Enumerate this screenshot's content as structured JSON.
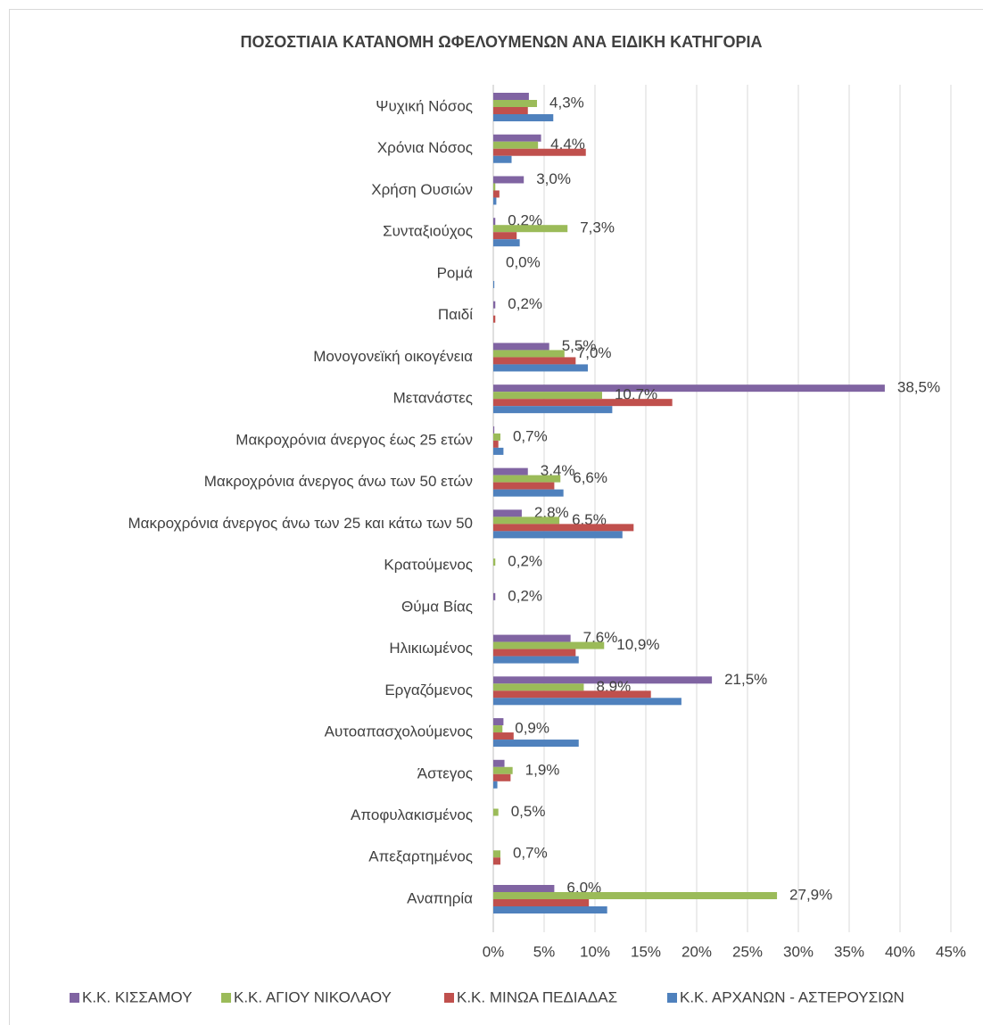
{
  "chart_data": {
    "type": "hbar",
    "title": "ΠΟΣΟΣΤΙΑΙΑ ΚΑΤΑΝΟΜΗ ΩΦΕΛΟΥΜΕΝΩΝ ΑΝΑ ΕΙΔΙΚΗ ΚΑΤΗΓΟΡΙΑ",
    "categories": [
      "Ψυχική Νόσος",
      "Χρόνια Νόσος",
      "Χρήση Ουσιών",
      "Συνταξιούχος",
      "Ρομά",
      "Παιδί",
      "Μονογονεϊκή οικογένεια",
      "Μετανάστες",
      "Μακροχρόνια άνεργος έως 25 ετών",
      "Μακροχρόνια άνεργος άνω των 50 ετών",
      "Μακροχρόνια άνεργος άνω των 25 και κάτω των 50",
      "Κρατούμενος",
      "Θύμα Βίας",
      "Ηλικιωμένος",
      "Εργαζόμενος",
      "Αυτοαπασχολούμενος",
      "Άστεγος",
      "Αποφυλακισμένος",
      "Απεξαρτημένος",
      "Αναπηρία"
    ],
    "series": [
      {
        "name": "Κ.Κ. ΚΙΣΣΑΜΟΥ",
        "color": "#8064a2",
        "values": [
          3.5,
          4.7,
          3.0,
          0.2,
          0.0,
          0.2,
          5.5,
          38.5,
          0.1,
          3.4,
          2.8,
          0,
          0.2,
          7.6,
          21.5,
          1.0,
          1.1,
          0,
          0,
          6.0
        ],
        "value_labels": [
          null,
          null,
          "3,0%",
          "0,2%",
          "0,0%",
          "0,2%",
          "5,5%",
          "38,5%",
          null,
          "3,4%",
          "2,8%",
          null,
          "0,2%",
          "7,6%",
          "21,5%",
          null,
          null,
          null,
          null,
          "6,0%"
        ]
      },
      {
        "name": "Κ.Κ. ΑΓΙΟΥ ΝΙΚΟΛΑΟΥ",
        "color": "#9bbb59",
        "values": [
          4.3,
          4.4,
          0.2,
          7.3,
          0,
          0,
          7.0,
          10.7,
          0.7,
          6.6,
          6.5,
          0.2,
          0,
          10.9,
          8.9,
          0.9,
          1.9,
          0.5,
          0.7,
          27.9
        ],
        "value_labels": [
          "4,3%",
          "4,4%",
          null,
          "7,3%",
          null,
          null,
          "7,0%",
          "10,7%",
          "0,7%",
          "6,6%",
          "6,5%",
          "0,2%",
          null,
          "10,9%",
          "8,9%",
          "0,9%",
          "1,9%",
          "0,5%",
          "0,7%",
          "27,9%"
        ]
      },
      {
        "name": "Κ.Κ. ΜΙΝΩΑ ΠΕΔΙΑΔΑΣ",
        "color": "#c0504d",
        "values": [
          3.4,
          9.1,
          0.6,
          2.3,
          0,
          0.2,
          8.1,
          17.6,
          0.5,
          6.0,
          13.8,
          0,
          0,
          8.1,
          15.5,
          2.0,
          1.7,
          0,
          0.7,
          9.4
        ]
      },
      {
        "name": "Κ.Κ. ΑΡΧΑΝΩΝ - ΑΣΤΕΡΟΥΣΙΩΝ",
        "color": "#4f81bd",
        "values": [
          5.9,
          1.8,
          0.3,
          2.6,
          0.1,
          0,
          9.3,
          11.7,
          1.0,
          6.9,
          12.7,
          0,
          0,
          8.4,
          18.5,
          8.4,
          0.4,
          0,
          0,
          11.2
        ]
      }
    ],
    "xlim": [
      0,
      45
    ],
    "xticks": [
      {
        "value": 0,
        "label": "0%"
      },
      {
        "value": 5,
        "label": "5%"
      },
      {
        "value": 10,
        "label": "10%"
      },
      {
        "value": 15,
        "label": "15%"
      },
      {
        "value": 20,
        "label": "20%"
      },
      {
        "value": 25,
        "label": "25%"
      },
      {
        "value": 30,
        "label": "30%"
      },
      {
        "value": 35,
        "label": "35%"
      },
      {
        "value": 40,
        "label": "40%"
      },
      {
        "value": 45,
        "label": "45%"
      }
    ],
    "grid": true,
    "legend": "bottom"
  }
}
